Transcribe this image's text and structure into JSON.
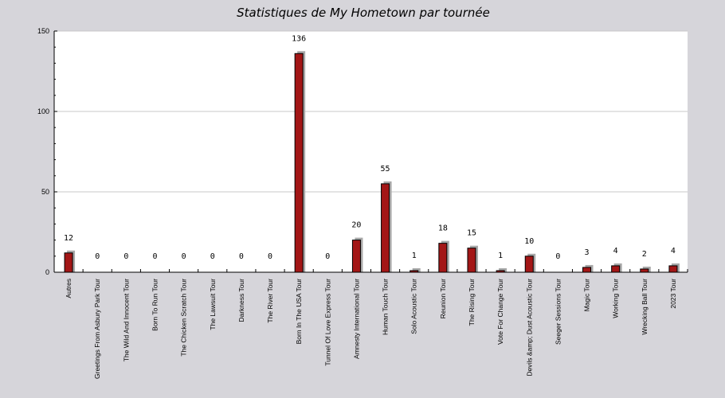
{
  "chart_data": {
    "type": "bar",
    "title": "Statistiques de My Hometown par tournée",
    "xlabel": "",
    "ylabel": "",
    "ylim": [
      0,
      150
    ],
    "yticks": [
      0,
      50,
      100,
      150
    ],
    "grid": true,
    "categories": [
      "Autres",
      "Greetings From Asbury Park Tour",
      "The Wild And Innocent Tour",
      "Born To Run Tour",
      "The Chicken Scratch Tour",
      "The Lawsuit Tour",
      "Darkness Tour",
      "The River Tour",
      "Born In The USA Tour",
      "Tunnel Of Love Express Tour",
      "Amnesty International Tour",
      "Human Touch Tour",
      "Solo Acoustic Tour",
      "Reunion Tour",
      "The Rising Tour",
      "Vote For Change Tour",
      "Devils &amp; Dust Acoustic Tour",
      "Seeger Sessions Tour",
      "Magic Tour",
      "Working Tour",
      "Wrecking Ball Tour",
      "2023 Tour"
    ],
    "values": [
      12,
      0,
      0,
      0,
      0,
      0,
      0,
      0,
      136,
      0,
      20,
      55,
      1,
      18,
      15,
      1,
      10,
      0,
      3,
      4,
      2,
      4
    ],
    "colors": {
      "bar": "#a31616",
      "bar_shadow": "#a8a8a8",
      "plot_background": "#ffffff",
      "page_background": "#d6d5da",
      "grid": "#c8c8c8"
    }
  }
}
